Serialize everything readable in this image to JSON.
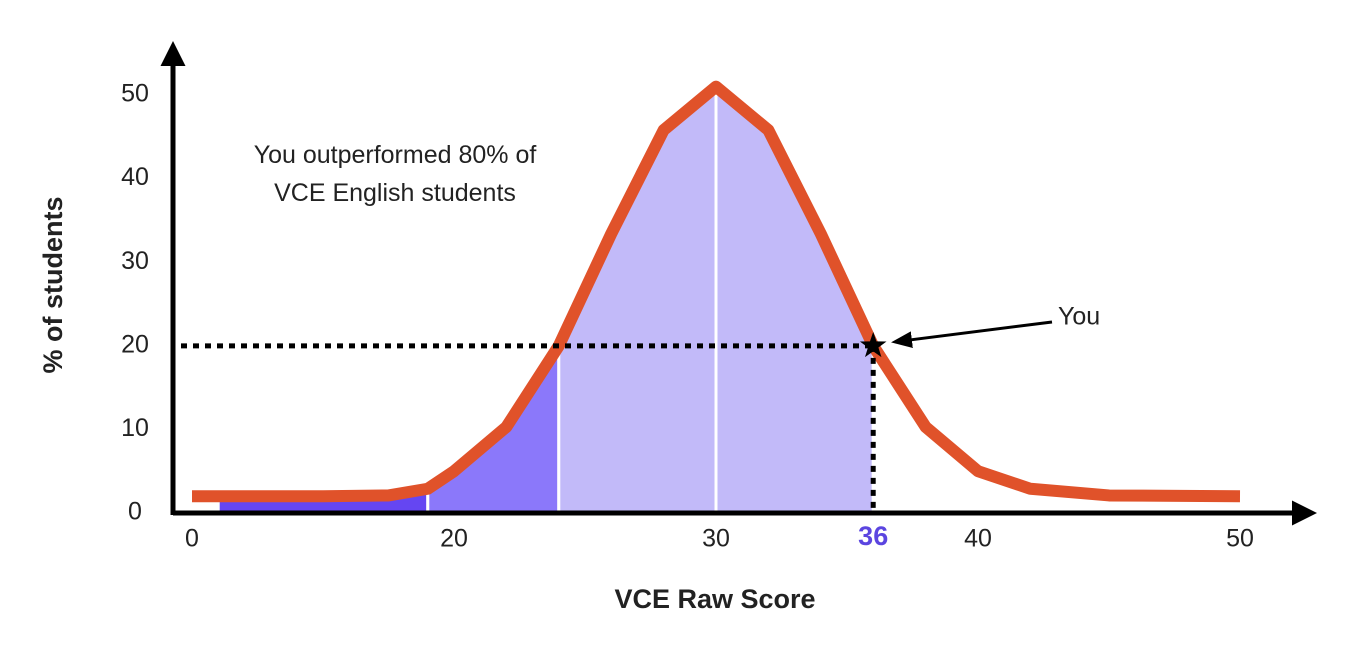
{
  "chart_data": {
    "type": "line",
    "x_label": "VCE Raw Score",
    "y_label": "% of students",
    "annotation": "You outperformed 80% of VCE English students",
    "x": [
      0,
      5,
      10,
      15,
      18,
      20,
      22,
      24,
      26,
      28,
      30,
      32,
      34,
      36,
      38,
      40,
      42,
      45,
      50
    ],
    "values": [
      2,
      2,
      2,
      2.1,
      2.9,
      5,
      10.3,
      20,
      33.4,
      45.8,
      51,
      45.8,
      33.4,
      20,
      10.3,
      5,
      2.9,
      2.1,
      2
    ],
    "color": "#e0522a",
    "xticks": [
      0,
      20,
      30,
      40,
      50
    ],
    "ylim": [
      0,
      54
    ],
    "yticks": [
      0,
      10,
      20,
      30,
      40,
      50
    ],
    "shaded_regions": [
      {
        "from": 2,
        "to": 18,
        "color": "#6546f2"
      },
      {
        "from": 18,
        "to": 24,
        "color": "#8b78fa"
      },
      {
        "from": 24,
        "to": 30,
        "color": "#c2baf9"
      },
      {
        "from": 30,
        "to": 36,
        "color": "#c2baf9"
      }
    ],
    "marker": {
      "x": 36,
      "y": 20,
      "label": "You",
      "color": "#5b45e0"
    }
  }
}
